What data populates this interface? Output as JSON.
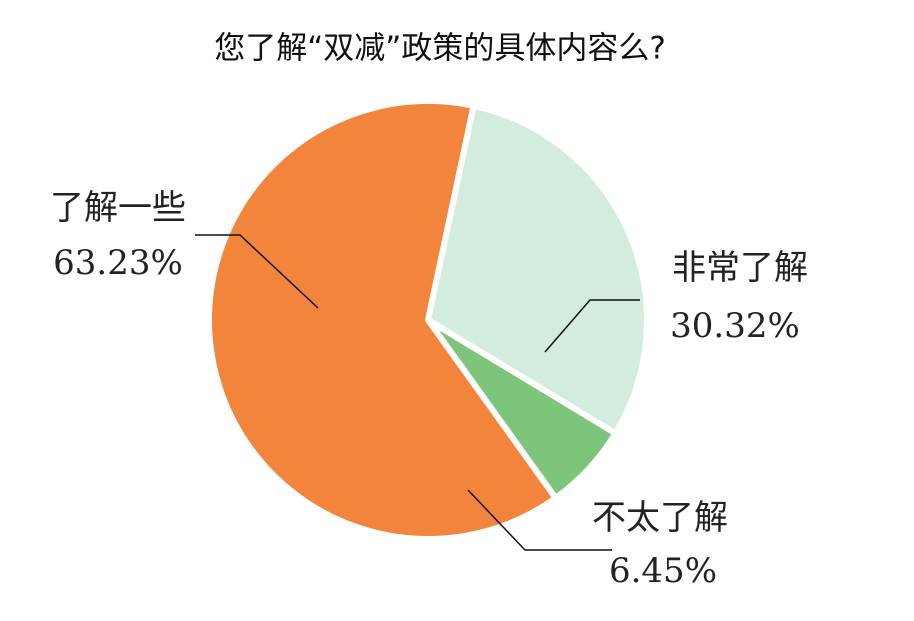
{
  "chart_data": {
    "type": "pie",
    "title": "您了解“双减”政策的具体内容么?",
    "categories": [
      "非常了解",
      "不太了解",
      "了解一些"
    ],
    "values": [
      30.32,
      6.45,
      63.23
    ],
    "value_labels": [
      "30.32%",
      "6.45%",
      "63.23%"
    ],
    "colors": [
      "#d3ecde",
      "#7dc57a",
      "#f2843c"
    ]
  }
}
